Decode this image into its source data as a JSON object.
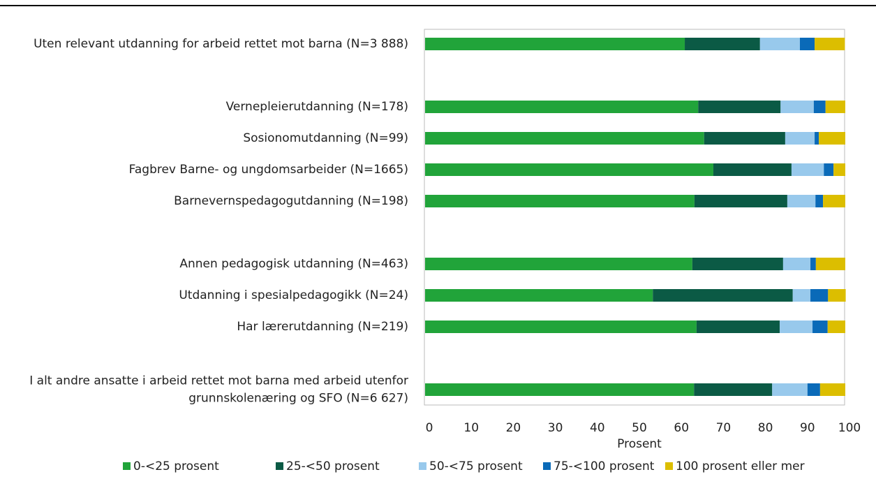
{
  "chart_data": {
    "type": "stacked_barh",
    "categories": [
      "Uten relevant utdanning for arbeid rettet mot barna (N=3 888)",
      null,
      "Vernepleierutdanning (N=178)",
      "Sosionomutdanning (N=99)",
      "Fagbrev Barne- og ungdomsarbeider (N=1665)",
      "Barnevernspedagogutdanning (N=198)",
      null,
      "Annen pedagogisk utdanning (N=463)",
      "Utdanning i spesialpedagogikk (N=24)",
      "Har lærerutdanning (N=219)",
      null,
      "I alt andre ansatte i arbeid rettet mot barna med arbeid utenfor grunnskolenæring og SFO (N=6 627)"
    ],
    "series": [
      {
        "name": "0-<25 prosent",
        "color": "#21a43a",
        "values": [
          61.8,
          null,
          65,
          66.4,
          68.6,
          64.1,
          null,
          63.6,
          54.2,
          64.6,
          null,
          64
        ]
      },
      {
        "name": "25-<50 prosent",
        "color": "#0b5a45",
        "values": [
          17.9,
          null,
          19.6,
          19.3,
          18.6,
          22.1,
          null,
          21.6,
          33.3,
          19.8,
          null,
          18.6
        ]
      },
      {
        "name": "50-<75 prosent",
        "color": "#98c9ec",
        "values": [
          9.5,
          null,
          7.9,
          7,
          7.7,
          6.7,
          null,
          6.5,
          4.2,
          7.8,
          null,
          8.4
        ]
      },
      {
        "name": "75-<100 prosent",
        "color": "#0a6ab8",
        "values": [
          3.5,
          null,
          2.8,
          1,
          2.3,
          1.8,
          null,
          1.3,
          4.2,
          3.6,
          null,
          3
        ]
      },
      {
        "name": "100 prosent eller mer",
        "color": "#dcbe00",
        "values": [
          7.2,
          null,
          4.7,
          6.3,
          2.8,
          5.3,
          null,
          7,
          4.2,
          4.2,
          null,
          6
        ]
      }
    ],
    "xlabel": "Prosent",
    "xlim": [
      0,
      100
    ],
    "xticks": [
      0,
      10,
      20,
      30,
      40,
      50,
      60,
      70,
      80,
      90,
      100
    ],
    "grid": false,
    "legend": "bottom"
  }
}
